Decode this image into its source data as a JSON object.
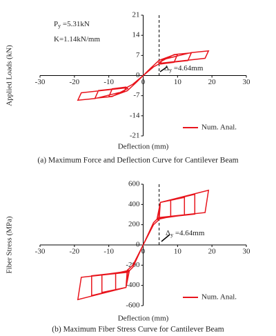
{
  "chart_data": [
    {
      "type": "line",
      "y_label": "Applied Loads (kN)",
      "x_label": "Deflection (mm)",
      "caption": "(a) Maximum Force and Deflection Curve for Cantilever Beam",
      "annotations": [
        {
          "text": "P",
          "sub": "y",
          "rest": " =5.31kN"
        },
        {
          "text": "K=1.14kN/mm"
        },
        {
          "text": "Δ",
          "sub": "y",
          "rest": " =4.64mm"
        }
      ],
      "reference_line": {
        "x": 4.64,
        "style": "dashed"
      },
      "xlim": [
        -30,
        30
      ],
      "xticks": [
        -30,
        -20,
        -10,
        0,
        10,
        20,
        30
      ],
      "ylim": [
        -21,
        21
      ],
      "yticks": [
        -21,
        -14,
        -7,
        0,
        7,
        14,
        21
      ],
      "legend": "lower-right",
      "series": [
        {
          "name": "Num. Anal.",
          "color": "#e8141c",
          "x": [
            0,
            2,
            4.64,
            9,
            10,
            9,
            5,
            4.5,
            9,
            14,
            13,
            5,
            5.5,
            14,
            19,
            18,
            5,
            3,
            0,
            -2,
            -4.64,
            -9,
            -10,
            -9,
            -5,
            -4.5,
            -9,
            -14,
            -13,
            -5,
            -5.5,
            -14,
            -19,
            -18,
            -5,
            -3,
            0
          ],
          "values": [
            0,
            2.4,
            5.31,
            7.2,
            7.4,
            4.6,
            4,
            4.5,
            7.3,
            7.9,
            5.2,
            4.2,
            5.5,
            8,
            8.6,
            6,
            4.3,
            3,
            0,
            -2.4,
            -5.31,
            -7.2,
            -7.4,
            -4.6,
            -4,
            -4.5,
            -7.3,
            -7.9,
            -5.2,
            -4.2,
            -5.5,
            -8,
            -8.6,
            -6,
            -4.3,
            -3,
            0
          ]
        }
      ]
    },
    {
      "type": "line",
      "y_label": "Fiber Stress (MPa)",
      "x_label": "Deflection (mm)",
      "caption": "(b) Maximum Fiber Stress  Curve for Cantilever Beam",
      "annotations": [
        {
          "text": "Δ",
          "sub": "y",
          "rest": " =4.64mm"
        }
      ],
      "reference_line": {
        "x": 4.64,
        "style": "dashed"
      },
      "xlim": [
        -30,
        30
      ],
      "xticks": [
        -30,
        -20,
        -10,
        0,
        10,
        20,
        30
      ],
      "ylim": [
        -600,
        600
      ],
      "yticks": [
        -600,
        -400,
        -200,
        0,
        200,
        400,
        600
      ],
      "legend": "lower-right",
      "series": [
        {
          "name": "Num. Anal.",
          "color": "#e8141c",
          "x": [
            0,
            3,
            4.64,
            5,
            8,
            8,
            4,
            5,
            12,
            12,
            4.5,
            5,
            15,
            15,
            4.5,
            5,
            19,
            18,
            4.5,
            3,
            0,
            -3,
            -4.64,
            -5,
            -8,
            -8,
            -4,
            -5,
            -12,
            -12,
            -4.5,
            -5,
            -15,
            -15,
            -4.5,
            -5,
            -19,
            -18,
            -4.5,
            -3,
            0
          ],
          "values": [
            0,
            200,
            250,
            420,
            445,
            280,
            250,
            420,
            470,
            295,
            260,
            420,
            500,
            305,
            265,
            420,
            540,
            320,
            270,
            220,
            0,
            -200,
            -250,
            -420,
            -445,
            -280,
            -250,
            -420,
            -470,
            -295,
            -260,
            -420,
            -500,
            -305,
            -265,
            -420,
            -540,
            -320,
            -270,
            -220,
            0
          ]
        }
      ]
    }
  ]
}
